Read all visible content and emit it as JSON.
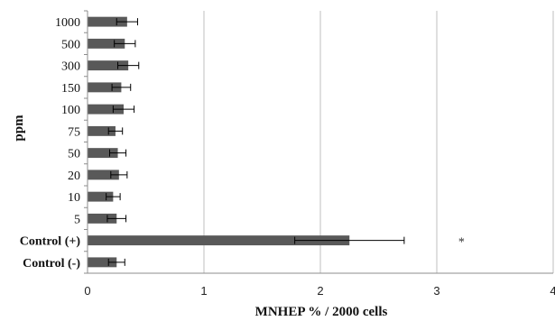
{
  "chart_data": {
    "type": "bar",
    "orientation": "horizontal",
    "categories": [
      "1000",
      "500",
      "300",
      "150",
      "100",
      "75",
      "50",
      "20",
      "10",
      "5",
      "Control (+)",
      "Control (-)"
    ],
    "values": [
      0.34,
      0.32,
      0.35,
      0.29,
      0.31,
      0.24,
      0.26,
      0.27,
      0.22,
      0.25,
      2.25,
      0.25
    ],
    "errors": [
      0.09,
      0.09,
      0.09,
      0.08,
      0.09,
      0.06,
      0.07,
      0.07,
      0.06,
      0.08,
      0.47,
      0.07
    ],
    "xlabel": "MNHEP % / 2000 cells",
    "ylabel": "ppm",
    "xlim": [
      0,
      4
    ],
    "xticks": [
      "0",
      "1",
      "2",
      "3",
      "4"
    ],
    "grid": "vertical",
    "bar_color": "#595959",
    "annotations": [
      {
        "category": "Control (+)",
        "text": "*"
      }
    ]
  }
}
